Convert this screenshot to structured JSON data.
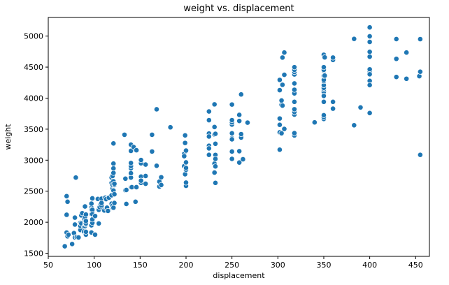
{
  "chart_data": {
    "type": "scatter",
    "title": "weight vs. displacement",
    "xlabel": "displacement",
    "ylabel": "weight",
    "xlim": [
      50,
      465
    ],
    "ylim": [
      1450,
      5300
    ],
    "xticks": [
      50,
      100,
      150,
      200,
      250,
      300,
      350,
      400,
      450
    ],
    "yticks": [
      1500,
      2000,
      2500,
      3000,
      3500,
      4000,
      4500,
      5000
    ],
    "grid": false,
    "marker_color": "#1f77b4",
    "points": [
      [
        68,
        1613
      ],
      [
        70,
        1834
      ],
      [
        70,
        2120
      ],
      [
        70,
        2420
      ],
      [
        71,
        1773
      ],
      [
        71,
        2330
      ],
      [
        72,
        1800
      ],
      [
        76,
        1649
      ],
      [
        78,
        1825
      ],
      [
        79,
        1755
      ],
      [
        79,
        1963
      ],
      [
        79,
        2074
      ],
      [
        80,
        2720
      ],
      [
        81,
        1760
      ],
      [
        83,
        1755
      ],
      [
        85,
        1990
      ],
      [
        85,
        1875
      ],
      [
        85,
        1940
      ],
      [
        86,
        2110
      ],
      [
        86,
        1980
      ],
      [
        87,
        2145
      ],
      [
        89,
        1925
      ],
      [
        89,
        2050
      ],
      [
        89,
        1850
      ],
      [
        90,
        1937
      ],
      [
        90,
        2254
      ],
      [
        90,
        1985
      ],
      [
        90,
        2035
      ],
      [
        90,
        2085
      ],
      [
        91,
        1800
      ],
      [
        91,
        1845
      ],
      [
        91,
        1965
      ],
      [
        91,
        1980
      ],
      [
        91,
        2020
      ],
      [
        91,
        2125
      ],
      [
        97,
        1835
      ],
      [
        97,
        2130
      ],
      [
        97,
        2234
      ],
      [
        97,
        2190
      ],
      [
        97,
        1950
      ],
      [
        97,
        2200
      ],
      [
        97,
        2300
      ],
      [
        98,
        1990
      ],
      [
        98,
        2045
      ],
      [
        98,
        2164
      ],
      [
        98,
        2200
      ],
      [
        98,
        2385
      ],
      [
        98,
        2130
      ],
      [
        101,
        1800
      ],
      [
        101,
        2100
      ],
      [
        104,
        2375
      ],
      [
        105,
        2215
      ],
      [
        105,
        1980
      ],
      [
        105,
        2200
      ],
      [
        106,
        2245
      ],
      [
        107,
        2290
      ],
      [
        108,
        2265
      ],
      [
        108,
        2379
      ],
      [
        108,
        2310
      ],
      [
        110,
        2202
      ],
      [
        111,
        2189
      ],
      [
        112,
        2395
      ],
      [
        112,
        2395
      ],
      [
        113,
        2225
      ],
      [
        113,
        2372
      ],
      [
        114,
        2234
      ],
      [
        115,
        2182
      ],
      [
        116,
        2395
      ],
      [
        119,
        2300
      ],
      [
        119,
        2434
      ],
      [
        119,
        2720
      ],
      [
        119,
        2635
      ],
      [
        120,
        2230
      ],
      [
        120,
        2265
      ],
      [
        120,
        2542
      ],
      [
        120,
        2745
      ],
      [
        120,
        2600
      ],
      [
        121,
        2234
      ],
      [
        121,
        2511
      ],
      [
        121,
        2660
      ],
      [
        121,
        2945
      ],
      [
        121,
        2795
      ],
      [
        121,
        2868
      ],
      [
        121,
        3270
      ],
      [
        122,
        2310
      ],
      [
        122,
        2451
      ],
      [
        122,
        2600
      ],
      [
        122,
        2620
      ],
      [
        133,
        3410
      ],
      [
        134,
        2515
      ],
      [
        134,
        2702
      ],
      [
        134,
        2515
      ],
      [
        135,
        2295
      ],
      [
        135,
        2520
      ],
      [
        140,
        2720
      ],
      [
        140,
        2870
      ],
      [
        140,
        2790
      ],
      [
        140,
        2905
      ],
      [
        140,
        2955
      ],
      [
        140,
        3150
      ],
      [
        140,
        3250
      ],
      [
        140,
        2565
      ],
      [
        141,
        2565
      ],
      [
        143,
        3211
      ],
      [
        145,
        2330
      ],
      [
        146,
        2565
      ],
      [
        146,
        3160
      ],
      [
        151,
        2635
      ],
      [
        151,
        2950
      ],
      [
        151,
        2735
      ],
      [
        151,
        2670
      ],
      [
        151,
        3003
      ],
      [
        156,
        2620
      ],
      [
        156,
        2745
      ],
      [
        156,
        2930
      ],
      [
        163,
        3410
      ],
      [
        163,
        3140
      ],
      [
        168,
        2910
      ],
      [
        168,
        3820
      ],
      [
        171,
        2575
      ],
      [
        171,
        2655
      ],
      [
        173,
        2600
      ],
      [
        173,
        2725
      ],
      [
        183,
        3530
      ],
      [
        198,
        2904
      ],
      [
        198,
        3102
      ],
      [
        198,
        3065
      ],
      [
        199,
        2774
      ],
      [
        199,
        3278
      ],
      [
        199,
        3400
      ],
      [
        200,
        2587
      ],
      [
        200,
        2639
      ],
      [
        200,
        2845
      ],
      [
        200,
        2875
      ],
      [
        200,
        2965
      ],
      [
        200,
        3155
      ],
      [
        225,
        3430
      ],
      [
        225,
        3233
      ],
      [
        225,
        3381
      ],
      [
        225,
        3645
      ],
      [
        225,
        3785
      ],
      [
        225,
        3086
      ],
      [
        225,
        3190
      ],
      [
        231,
        3900
      ],
      [
        231,
        2945
      ],
      [
        231,
        3535
      ],
      [
        231,
        3415
      ],
      [
        231,
        2800
      ],
      [
        232,
        2634
      ],
      [
        232,
        3039
      ],
      [
        232,
        3085
      ],
      [
        232,
        3021
      ],
      [
        232,
        2900
      ],
      [
        232,
        3265
      ],
      [
        232,
        3425
      ],
      [
        250,
        3021
      ],
      [
        250,
        3139
      ],
      [
        250,
        3329
      ],
      [
        250,
        3353
      ],
      [
        250,
        3336
      ],
      [
        250,
        3433
      ],
      [
        250,
        3574
      ],
      [
        250,
        3610
      ],
      [
        250,
        3645
      ],
      [
        250,
        3897
      ],
      [
        258,
        3145
      ],
      [
        258,
        3632
      ],
      [
        258,
        3730
      ],
      [
        258,
        2962
      ],
      [
        260,
        4060
      ],
      [
        260,
        3365
      ],
      [
        260,
        3420
      ],
      [
        262,
        3015
      ],
      [
        267,
        3605
      ],
      [
        302,
        3169
      ],
      [
        302,
        3449
      ],
      [
        302,
        3570
      ],
      [
        302,
        3672
      ],
      [
        302,
        4129
      ],
      [
        302,
        4294
      ],
      [
        304,
        3433
      ],
      [
        304,
        3892
      ],
      [
        304,
        3962
      ],
      [
        305,
        4215
      ],
      [
        305,
        3880
      ],
      [
        305,
        4654
      ],
      [
        307,
        3504
      ],
      [
        307,
        4376
      ],
      [
        307,
        4735
      ],
      [
        318,
        3399
      ],
      [
        318,
        3436
      ],
      [
        318,
        3735
      ],
      [
        318,
        3777
      ],
      [
        318,
        3821
      ],
      [
        318,
        3940
      ],
      [
        318,
        4077
      ],
      [
        318,
        4135
      ],
      [
        318,
        4237
      ],
      [
        318,
        4382
      ],
      [
        318,
        4422
      ],
      [
        318,
        4457
      ],
      [
        318,
        4499
      ],
      [
        340,
        3609
      ],
      [
        350,
        3664
      ],
      [
        350,
        3693
      ],
      [
        350,
        3725
      ],
      [
        350,
        4100
      ],
      [
        350,
        4140
      ],
      [
        350,
        4165
      ],
      [
        350,
        4209
      ],
      [
        350,
        4274
      ],
      [
        350,
        4295
      ],
      [
        350,
        4360
      ],
      [
        350,
        4440
      ],
      [
        350,
        4456
      ],
      [
        350,
        4499
      ],
      [
        350,
        4699
      ],
      [
        350,
        3940
      ],
      [
        350,
        4036
      ],
      [
        351,
        4363
      ],
      [
        351,
        4657
      ],
      [
        360,
        3830
      ],
      [
        360,
        3940
      ],
      [
        360,
        4615
      ],
      [
        360,
        4654
      ],
      [
        383,
        3563
      ],
      [
        383,
        4955
      ],
      [
        390,
        3850
      ],
      [
        400,
        4422
      ],
      [
        400,
        4464
      ],
      [
        400,
        4668
      ],
      [
        400,
        4746
      ],
      [
        400,
        4906
      ],
      [
        400,
        4997
      ],
      [
        400,
        5140
      ],
      [
        400,
        3760
      ],
      [
        400,
        4278
      ],
      [
        400,
        4210
      ],
      [
        400,
        4385
      ],
      [
        429,
        4633
      ],
      [
        429,
        4952
      ],
      [
        429,
        4341
      ],
      [
        440,
        4312
      ],
      [
        440,
        4735
      ],
      [
        454,
        4354
      ],
      [
        455,
        3086
      ],
      [
        455,
        4425
      ],
      [
        455,
        4951
      ]
    ]
  }
}
